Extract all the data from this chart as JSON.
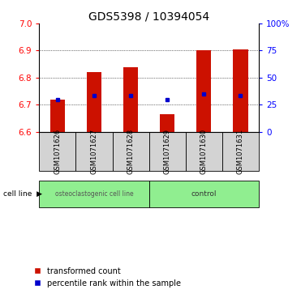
{
  "title": "GDS5398 / 10394054",
  "samples": [
    "GSM1071626",
    "GSM1071627",
    "GSM1071628",
    "GSM1071629",
    "GSM1071630",
    "GSM1071631"
  ],
  "bar_bottom": 6.6,
  "bar_tops": [
    6.72,
    6.82,
    6.84,
    6.665,
    6.9,
    6.905
  ],
  "percentile_values": [
    6.72,
    6.735,
    6.735,
    6.72,
    6.74,
    6.735
  ],
  "ylim": [
    6.6,
    7.0
  ],
  "yticks": [
    6.6,
    6.7,
    6.8,
    6.9,
    7.0
  ],
  "right_yticks": [
    0,
    25,
    50,
    75,
    100
  ],
  "bar_color": "#CC1100",
  "blue_color": "#0000CC",
  "group1_label": "osteoclastogenic cell line",
  "group2_label": "control",
  "group_color": "#90EE90",
  "label_bg_color": "#d3d3d3",
  "cell_line_label": "cell line",
  "legend_red_label": "transformed count",
  "legend_blue_label": "percentile rank within the sample",
  "title_fontsize": 10,
  "tick_fontsize": 7.5,
  "sample_fontsize": 6,
  "group_fontsize": 6.5,
  "legend_fontsize": 7
}
